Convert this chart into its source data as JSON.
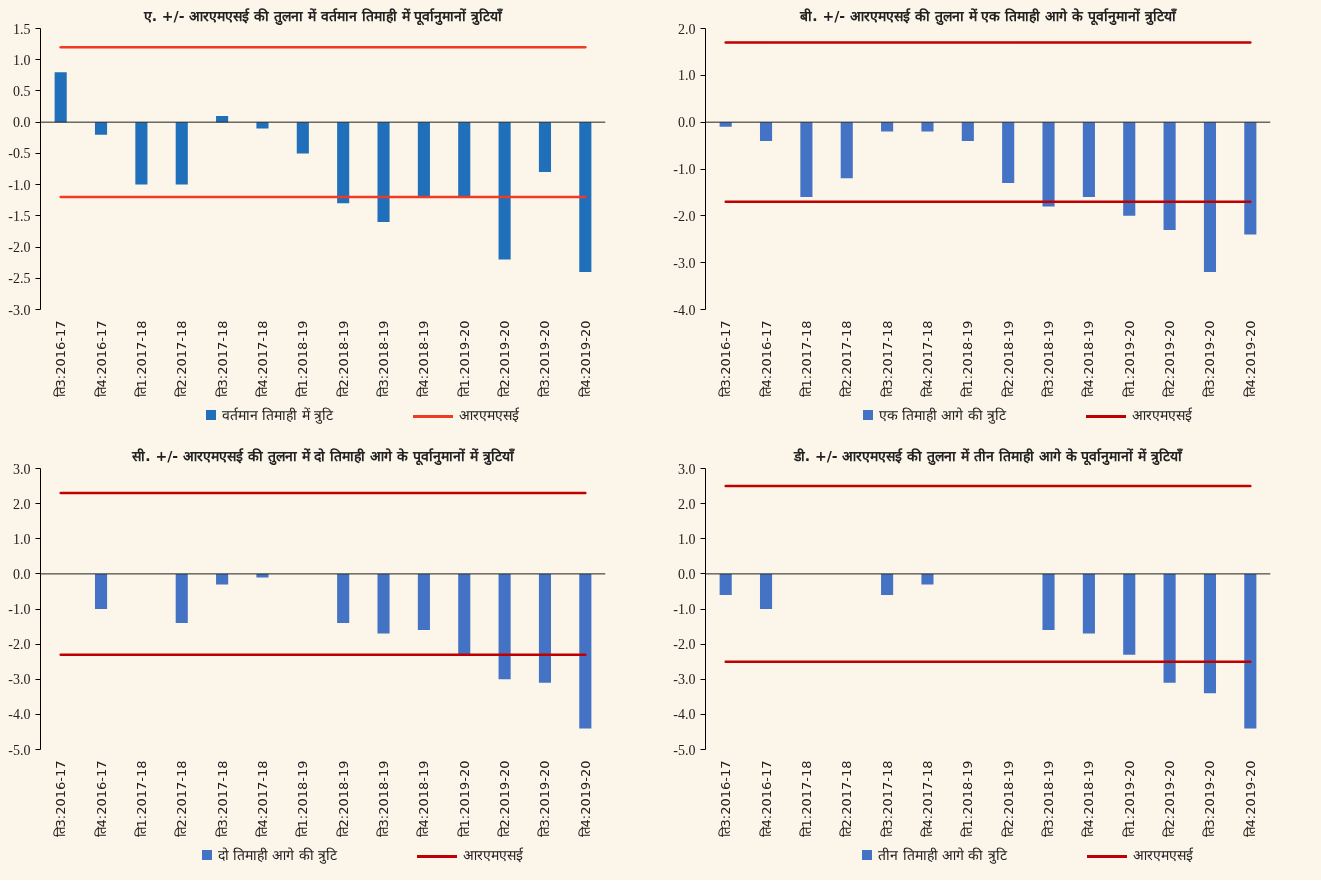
{
  "chart_data": [
    {
      "type": "bar",
      "title": "ए. +/- आरएमएसई की तुलना में वर्तमान तिमाही में पूर्वानुमानों त्रुटियाँ",
      "categories": [
        "ति3:2016-17",
        "ति4:2016-17",
        "ति1:2017-18",
        "ति2:2017-18",
        "ति3:2017-18",
        "ति4:2017-18",
        "ति1:2018-19",
        "ति2:2018-19",
        "ति3:2018-19",
        "ति4:2018-19",
        "ति1:2019-20",
        "ति2:2019-20",
        "ति3:2019-20",
        "ति4:2019-20"
      ],
      "series": [
        {
          "name": "वर्तमान तिमाही में त्रुटि",
          "color": "#1f6fba",
          "values": [
            0.8,
            -0.2,
            -1.0,
            -1.0,
            0.1,
            -0.1,
            -0.5,
            -1.3,
            -1.6,
            -1.2,
            -1.2,
            -2.2,
            -0.8,
            -2.4
          ]
        },
        {
          "type": "line",
          "name": "आरएमएसई",
          "color": "#f03a24",
          "values": [
            1.2,
            1.2,
            1.2,
            1.2,
            1.2,
            1.2,
            1.2,
            1.2,
            1.2,
            1.2,
            1.2,
            1.2,
            1.2,
            1.2
          ]
        },
        {
          "type": "line",
          "color": "#f03a24",
          "values": [
            -1.2,
            -1.2,
            -1.2,
            -1.2,
            -1.2,
            -1.2,
            -1.2,
            -1.2,
            -1.2,
            -1.2,
            -1.2,
            -1.2,
            -1.2,
            -1.2
          ]
        }
      ],
      "ylim": [
        -3.0,
        1.5
      ],
      "yticks": [
        {
          "value": 1.5,
          "label": "1.5"
        },
        {
          "value": 1.0,
          "label": "1.0"
        },
        {
          "value": 0.5,
          "label": "0.5"
        },
        {
          "value": 0.0,
          "label": "0.0"
        },
        {
          "value": -0.5,
          "label": "-0.5"
        },
        {
          "value": -1.0,
          "label": "-1.0"
        },
        {
          "value": -1.5,
          "label": "-1.5"
        },
        {
          "value": -2.0,
          "label": "-2.0"
        },
        {
          "value": -2.5,
          "label": "-2.5"
        },
        {
          "value": -3.0,
          "label": "-3.0"
        }
      ],
      "legend": "bottom"
    },
    {
      "type": "bar",
      "title": "बी. +/- आरएमएसई की तुलना में एक तिमाही आगे के पूर्वानुमानों त्रुटियाँ",
      "categories": [
        "ति3:2016-17",
        "ति4:2016-17",
        "ति1:2017-18",
        "ति2:2017-18",
        "ति3:2017-18",
        "ति4:2017-18",
        "ति1:2018-19",
        "ति2:2018-19",
        "ति3:2018-19",
        "ति4:2018-19",
        "ति1:2019-20",
        "ति2:2019-20",
        "ति3:2019-20",
        "ति4:2019-20"
      ],
      "series": [
        {
          "name": "एक तिमाही आगे की त्रुटि",
          "color": "#4472c4",
          "values": [
            -0.1,
            -0.4,
            -1.6,
            -1.2,
            -0.2,
            -0.2,
            -0.4,
            -1.3,
            -1.8,
            -1.6,
            -2.0,
            -2.3,
            -3.2,
            -2.4
          ]
        },
        {
          "type": "line",
          "name": "आरएमएसई",
          "color": "#c00000",
          "values": [
            1.7,
            1.7,
            1.7,
            1.7,
            1.7,
            1.7,
            1.7,
            1.7,
            1.7,
            1.7,
            1.7,
            1.7,
            1.7,
            1.7
          ]
        },
        {
          "type": "line",
          "color": "#c00000",
          "values": [
            -1.7,
            -1.7,
            -1.7,
            -1.7,
            -1.7,
            -1.7,
            -1.7,
            -1.7,
            -1.7,
            -1.7,
            -1.7,
            -1.7,
            -1.7,
            -1.7
          ]
        }
      ],
      "ylim": [
        -4.0,
        2.0
      ],
      "yticks": [
        {
          "value": 2.0,
          "label": "2.0"
        },
        {
          "value": 1.0,
          "label": "1.0"
        },
        {
          "value": 0.0,
          "label": "0.0"
        },
        {
          "value": -1.0,
          "label": "-1.0"
        },
        {
          "value": -2.0,
          "label": "-2.0"
        },
        {
          "value": -3.0,
          "label": "-3.0"
        },
        {
          "value": -4.0,
          "label": "-4.0"
        }
      ],
      "legend": "bottom"
    },
    {
      "type": "bar",
      "title": "सी. +/- आरएमएसई की तुलना में दो तिमाही आगे के पूर्वानुमानों में त्रुटियाँ",
      "categories": [
        "ति3:2016-17",
        "ति4:2016-17",
        "ति1:2017-18",
        "ति2:2017-18",
        "ति3:2017-18",
        "ति4:2017-18",
        "ति1:2018-19",
        "ति2:2018-19",
        "ति3:2018-19",
        "ति4:2018-19",
        "ति1:2019-20",
        "ति2:2019-20",
        "ति3:2019-20",
        "ति4:2019-20"
      ],
      "series": [
        {
          "name": "दो तिमाही आगे की त्रुटि",
          "color": "#4472c4",
          "values": [
            0.0,
            -1.0,
            0.0,
            -1.4,
            -0.3,
            -0.1,
            0.0,
            -1.4,
            -1.7,
            -1.6,
            -2.3,
            -3.0,
            -3.1,
            -4.4
          ]
        },
        {
          "type": "line",
          "name": "आरएमएसई",
          "color": "#c00000",
          "values": [
            2.3,
            2.3,
            2.3,
            2.3,
            2.3,
            2.3,
            2.3,
            2.3,
            2.3,
            2.3,
            2.3,
            2.3,
            2.3,
            2.3
          ]
        },
        {
          "type": "line",
          "color": "#c00000",
          "values": [
            -2.3,
            -2.3,
            -2.3,
            -2.3,
            -2.3,
            -2.3,
            -2.3,
            -2.3,
            -2.3,
            -2.3,
            -2.3,
            -2.3,
            -2.3,
            -2.3
          ]
        }
      ],
      "ylim": [
        -5.0,
        3.0
      ],
      "yticks": [
        {
          "value": 3.0,
          "label": "3.0"
        },
        {
          "value": 2.0,
          "label": "2.0"
        },
        {
          "value": 1.0,
          "label": "1.0"
        },
        {
          "value": 0.0,
          "label": "0.0"
        },
        {
          "value": -1.0,
          "label": "-1.0"
        },
        {
          "value": -2.0,
          "label": "-2.0"
        },
        {
          "value": -3.0,
          "label": "-3.0"
        },
        {
          "value": -4.0,
          "label": "-4.0"
        },
        {
          "value": -5.0,
          "label": "-5.0"
        }
      ],
      "legend": "bottom"
    },
    {
      "type": "bar",
      "title": "डी. +/- आरएमएसई की तुलना में तीन तिमाही आगे के पूर्वानुमानों में त्रुटियाँ",
      "categories": [
        "ति3:2016-17",
        "ति4:2016-17",
        "ति1:2017-18",
        "ति2:2017-18",
        "ति3:2017-18",
        "ति4:2017-18",
        "ति1:2018-19",
        "ति2:2018-19",
        "ति3:2018-19",
        "ति4:2018-19",
        "ति1:2019-20",
        "ति2:2019-20",
        "ति3:2019-20",
        "ति4:2019-20"
      ],
      "series": [
        {
          "name": "तीन तिमाही आगे की त्रुटि",
          "color": "#4472c4",
          "values": [
            -0.6,
            -1.0,
            0.0,
            0.0,
            -0.6,
            -0.3,
            0.0,
            0.0,
            -1.6,
            -1.7,
            -2.3,
            -3.1,
            -3.4,
            -4.4
          ]
        },
        {
          "type": "line",
          "name": "आरएमएसई",
          "color": "#c00000",
          "values": [
            2.5,
            2.5,
            2.5,
            2.5,
            2.5,
            2.5,
            2.5,
            2.5,
            2.5,
            2.5,
            2.5,
            2.5,
            2.5,
            2.5
          ]
        },
        {
          "type": "line",
          "color": "#c00000",
          "values": [
            -2.5,
            -2.5,
            -2.5,
            -2.5,
            -2.5,
            -2.5,
            -2.5,
            -2.5,
            -2.5,
            -2.5,
            -2.5,
            -2.5,
            -2.5,
            -2.5
          ]
        }
      ],
      "ylim": [
        -5.0,
        3.0
      ],
      "yticks": [
        {
          "value": 3.0,
          "label": "3.0"
        },
        {
          "value": 2.0,
          "label": "2.0"
        },
        {
          "value": 1.0,
          "label": "1.0"
        },
        {
          "value": 0.0,
          "label": "0.0"
        },
        {
          "value": -1.0,
          "label": "-1.0"
        },
        {
          "value": -2.0,
          "label": "-2.0"
        },
        {
          "value": -3.0,
          "label": "-3.0"
        },
        {
          "value": -4.0,
          "label": "-4.0"
        },
        {
          "value": -5.0,
          "label": "-5.0"
        }
      ],
      "legend": "bottom"
    }
  ]
}
